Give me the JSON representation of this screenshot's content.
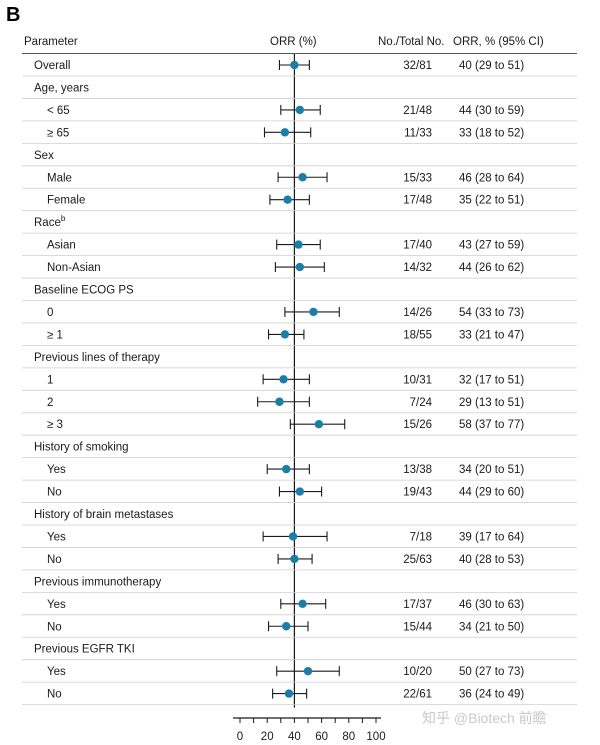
{
  "panel_label": "B",
  "watermark": "知乎 @Biotech 前瞻",
  "colors": {
    "point": "#1a7fa8",
    "line": "#1a1a1a",
    "rule": "#cfcfcf"
  },
  "chart_data": {
    "type": "forest",
    "headers": {
      "parameter": "Parameter",
      "orr": "ORR (%)",
      "no_total": "No./Total No.",
      "orr_ci": "ORR, % (95% CI)"
    },
    "xlim": [
      0,
      100
    ],
    "xticks": [
      "0",
      "20",
      "40",
      "60",
      "80",
      "100"
    ],
    "reference_line": 40,
    "rows": [
      {
        "label": "Overall",
        "group": true,
        "est": 40,
        "lo": 29,
        "hi": 51,
        "n": "32/81",
        "ci": "40 (29 to 51)"
      },
      {
        "label": "Age, years",
        "group": true
      },
      {
        "label": "< 65",
        "est": 44,
        "lo": 30,
        "hi": 59,
        "n": "21/48",
        "ci": "44 (30 to 59)"
      },
      {
        "label": "≥ 65",
        "est": 33,
        "lo": 18,
        "hi": 52,
        "n": "11/33",
        "ci": "33 (18 to 52)"
      },
      {
        "label": "Sex",
        "group": true
      },
      {
        "label": "Male",
        "est": 46,
        "lo": 28,
        "hi": 64,
        "n": "15/33",
        "ci": "46 (28 to 64)"
      },
      {
        "label": "Female",
        "est": 35,
        "lo": 22,
        "hi": 51,
        "n": "17/48",
        "ci": "35 (22 to 51)"
      },
      {
        "label": "Race",
        "sup": "b",
        "group": true
      },
      {
        "label": "Asian",
        "est": 43,
        "lo": 27,
        "hi": 59,
        "n": "17/40",
        "ci": "43 (27 to 59)"
      },
      {
        "label": "Non-Asian",
        "est": 44,
        "lo": 26,
        "hi": 62,
        "n": "14/32",
        "ci": "44 (26 to 62)"
      },
      {
        "label": "Baseline ECOG PS",
        "group": true
      },
      {
        "label": "0",
        "est": 54,
        "lo": 33,
        "hi": 73,
        "n": "14/26",
        "ci": "54 (33 to 73)"
      },
      {
        "label": "≥ 1",
        "est": 33,
        "lo": 21,
        "hi": 47,
        "n": "18/55",
        "ci": "33 (21 to 47)"
      },
      {
        "label": "Previous lines of therapy",
        "group": true
      },
      {
        "label": "1",
        "est": 32,
        "lo": 17,
        "hi": 51,
        "n": "10/31",
        "ci": "32 (17 to 51)"
      },
      {
        "label": "2",
        "est": 29,
        "lo": 13,
        "hi": 51,
        "n": "7/24",
        "ci": "29 (13 to 51)"
      },
      {
        "label": "≥ 3",
        "est": 58,
        "lo": 37,
        "hi": 77,
        "n": "15/26",
        "ci": "58 (37 to 77)"
      },
      {
        "label": "History of smoking",
        "group": true
      },
      {
        "label": "Yes",
        "est": 34,
        "lo": 20,
        "hi": 51,
        "n": "13/38",
        "ci": "34 (20 to 51)"
      },
      {
        "label": "No",
        "est": 44,
        "lo": 29,
        "hi": 60,
        "n": "19/43",
        "ci": "44 (29 to 60)"
      },
      {
        "label": "History of brain metastases",
        "group": true
      },
      {
        "label": "Yes",
        "est": 39,
        "lo": 17,
        "hi": 64,
        "n": "7/18",
        "ci": "39 (17 to 64)"
      },
      {
        "label": "No",
        "est": 40,
        "lo": 28,
        "hi": 53,
        "n": "25/63",
        "ci": "40 (28 to 53)"
      },
      {
        "label": "Previous immunotherapy",
        "group": true
      },
      {
        "label": "Yes",
        "est": 46,
        "lo": 30,
        "hi": 63,
        "n": "17/37",
        "ci": "46 (30 to 63)"
      },
      {
        "label": "No",
        "est": 34,
        "lo": 21,
        "hi": 50,
        "n": "15/44",
        "ci": "34 (21 to 50)"
      },
      {
        "label": "Previous EGFR TKI",
        "group": true
      },
      {
        "label": "Yes",
        "est": 50,
        "lo": 27,
        "hi": 73,
        "n": "10/20",
        "ci": "50 (27 to 73)"
      },
      {
        "label": "No",
        "est": 36,
        "lo": 24,
        "hi": 49,
        "n": "22/61",
        "ci": "36 (24 to 49)"
      }
    ]
  }
}
